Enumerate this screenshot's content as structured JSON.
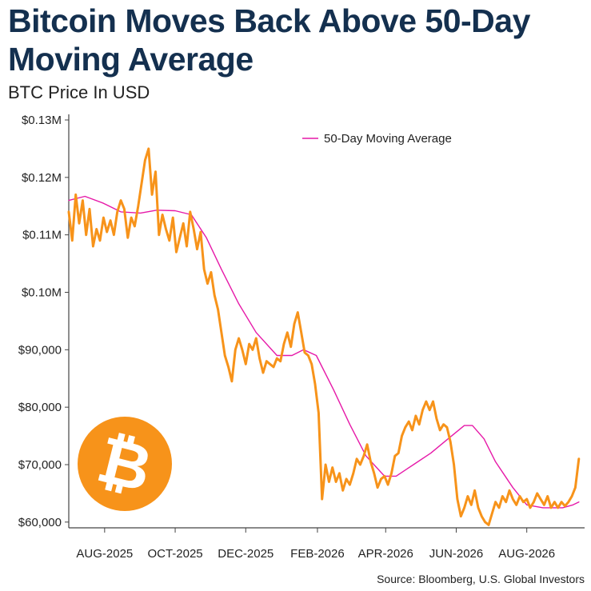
{
  "header": {
    "title_line1": "Bitcoin Moves Back Above 50-Day",
    "title_line2": "Moving Average",
    "subtitle": "BTC Price In USD"
  },
  "source": "Source: Bloomberg, U.S. Global Investors",
  "logo": {
    "icon": "bitcoin-logo-icon",
    "color": "#f7931a",
    "glyph": "₿"
  },
  "colors": {
    "price": "#f7931a",
    "moving_average": "#e619a8",
    "axis": "#444444"
  },
  "chart_data": {
    "type": "line",
    "title": "Bitcoin Moves Back Above 50-Day Moving Average",
    "subtitle": "BTC Price In USD",
    "ylim": [
      59000,
      130000
    ],
    "y_ticks": [
      {
        "value": 60000,
        "label": "$60,000"
      },
      {
        "value": 70000,
        "label": "$70,000"
      },
      {
        "value": 80000,
        "label": "$80,000"
      },
      {
        "value": 90000,
        "label": "$90,000"
      },
      {
        "value": 100000,
        "label": "$0.10M"
      },
      {
        "value": 110000,
        "label": "$0.11M"
      },
      {
        "value": 120000,
        "label": "$0.12M"
      },
      {
        "value": 130000,
        "label": "$0.13M"
      }
    ],
    "xlim": [
      "2025-07-01",
      "2026-09-20"
    ],
    "x_ticks": [
      {
        "date": "2025-08-01",
        "label": "AUG-2025"
      },
      {
        "date": "2025-10-01",
        "label": "OCT-2025"
      },
      {
        "date": "2025-12-01",
        "label": "DEC-2025"
      },
      {
        "date": "2026-02-01",
        "label": "FEB-2026"
      },
      {
        "date": "2026-04-01",
        "label": "APR-2026"
      },
      {
        "date": "2026-06-01",
        "label": "JUN-2026"
      },
      {
        "date": "2026-08-01",
        "label": "AUG-2026"
      }
    ],
    "legend": {
      "position": "top-center"
    },
    "series": [
      {
        "name": "BTC Price",
        "color": "#f7931a",
        "points": [
          [
            "2025-07-01",
            114000
          ],
          [
            "2025-07-04",
            109000
          ],
          [
            "2025-07-07",
            117000
          ],
          [
            "2025-07-10",
            112000
          ],
          [
            "2025-07-13",
            116000
          ],
          [
            "2025-07-16",
            110000
          ],
          [
            "2025-07-19",
            114500
          ],
          [
            "2025-07-22",
            108000
          ],
          [
            "2025-07-25",
            111000
          ],
          [
            "2025-07-28",
            109000
          ],
          [
            "2025-07-31",
            113000
          ],
          [
            "2025-08-03",
            110500
          ],
          [
            "2025-08-06",
            112500
          ],
          [
            "2025-08-09",
            110000
          ],
          [
            "2025-08-12",
            114000
          ],
          [
            "2025-08-15",
            116000
          ],
          [
            "2025-08-18",
            114500
          ],
          [
            "2025-08-21",
            109500
          ],
          [
            "2025-08-24",
            113000
          ],
          [
            "2025-08-27",
            111500
          ],
          [
            "2025-08-30",
            115000
          ],
          [
            "2025-09-02",
            119000
          ],
          [
            "2025-09-05",
            123000
          ],
          [
            "2025-09-08",
            125000
          ],
          [
            "2025-09-11",
            117000
          ],
          [
            "2025-09-14",
            121000
          ],
          [
            "2025-09-17",
            110000
          ],
          [
            "2025-09-20",
            113500
          ],
          [
            "2025-09-23",
            111000
          ],
          [
            "2025-09-26",
            109000
          ],
          [
            "2025-09-29",
            113000
          ],
          [
            "2025-10-02",
            107000
          ],
          [
            "2025-10-05",
            109500
          ],
          [
            "2025-10-08",
            112000
          ],
          [
            "2025-10-11",
            108000
          ],
          [
            "2025-10-14",
            114000
          ],
          [
            "2025-10-17",
            111000
          ],
          [
            "2025-10-20",
            107500
          ],
          [
            "2025-10-23",
            110500
          ],
          [
            "2025-10-26",
            104000
          ],
          [
            "2025-10-29",
            101500
          ],
          [
            "2025-11-01",
            103500
          ],
          [
            "2025-11-04",
            99500
          ],
          [
            "2025-11-07",
            97000
          ],
          [
            "2025-11-10",
            93000
          ],
          [
            "2025-11-13",
            89000
          ],
          [
            "2025-11-16",
            87000
          ],
          [
            "2025-11-19",
            84500
          ],
          [
            "2025-11-22",
            90000
          ],
          [
            "2025-11-25",
            92000
          ],
          [
            "2025-11-28",
            90000
          ],
          [
            "2025-12-01",
            87500
          ],
          [
            "2025-12-04",
            91000
          ],
          [
            "2025-12-07",
            90000
          ],
          [
            "2025-12-10",
            92000
          ],
          [
            "2025-12-13",
            88500
          ],
          [
            "2025-12-16",
            86000
          ],
          [
            "2025-12-19",
            88000
          ],
          [
            "2025-12-22",
            87500
          ],
          [
            "2025-12-25",
            87000
          ],
          [
            "2025-12-28",
            88500
          ],
          [
            "2025-12-31",
            88000
          ],
          [
            "2026-01-03",
            91000
          ],
          [
            "2026-01-06",
            93000
          ],
          [
            "2026-01-09",
            90500
          ],
          [
            "2026-01-12",
            94500
          ],
          [
            "2026-01-15",
            96500
          ],
          [
            "2026-01-18",
            93000
          ],
          [
            "2026-01-21",
            89500
          ],
          [
            "2026-01-24",
            89000
          ],
          [
            "2026-01-27",
            87500
          ],
          [
            "2026-01-30",
            84000
          ],
          [
            "2026-02-02",
            79000
          ],
          [
            "2026-02-05",
            64000
          ],
          [
            "2026-02-08",
            70000
          ],
          [
            "2026-02-11",
            67000
          ],
          [
            "2026-02-14",
            69500
          ],
          [
            "2026-02-17",
            67000
          ],
          [
            "2026-02-20",
            68500
          ],
          [
            "2026-02-23",
            65500
          ],
          [
            "2026-02-26",
            67500
          ],
          [
            "2026-03-01",
            66500
          ],
          [
            "2026-03-04",
            68500
          ],
          [
            "2026-03-07",
            71000
          ],
          [
            "2026-03-10",
            70000
          ],
          [
            "2026-03-13",
            71500
          ],
          [
            "2026-03-16",
            73500
          ],
          [
            "2026-03-19",
            70500
          ],
          [
            "2026-03-22",
            68500
          ],
          [
            "2026-03-25",
            66000
          ],
          [
            "2026-03-28",
            67500
          ],
          [
            "2026-03-31",
            68000
          ],
          [
            "2026-04-03",
            66500
          ],
          [
            "2026-04-06",
            68500
          ],
          [
            "2026-04-09",
            71500
          ],
          [
            "2026-04-12",
            72000
          ],
          [
            "2026-04-15",
            75000
          ],
          [
            "2026-04-18",
            76500
          ],
          [
            "2026-04-21",
            77500
          ],
          [
            "2026-04-24",
            76000
          ],
          [
            "2026-04-27",
            78500
          ],
          [
            "2026-04-30",
            77000
          ],
          [
            "2026-05-03",
            79500
          ],
          [
            "2026-05-06",
            81000
          ],
          [
            "2026-05-09",
            79500
          ],
          [
            "2026-05-12",
            81000
          ],
          [
            "2026-05-15",
            78000
          ],
          [
            "2026-05-18",
            76000
          ],
          [
            "2026-05-21",
            77000
          ],
          [
            "2026-05-24",
            76500
          ],
          [
            "2026-05-27",
            74000
          ],
          [
            "2026-05-30",
            70000
          ],
          [
            "2026-06-02",
            64000
          ],
          [
            "2026-06-05",
            61000
          ],
          [
            "2026-06-08",
            62500
          ],
          [
            "2026-06-11",
            64500
          ],
          [
            "2026-06-14",
            63000
          ],
          [
            "2026-06-17",
            65500
          ],
          [
            "2026-06-20",
            62500
          ],
          [
            "2026-06-23",
            61000
          ],
          [
            "2026-06-26",
            60000
          ],
          [
            "2026-06-29",
            59500
          ],
          [
            "2026-07-02",
            61500
          ],
          [
            "2026-07-05",
            63500
          ],
          [
            "2026-07-08",
            62500
          ],
          [
            "2026-07-11",
            64500
          ],
          [
            "2026-07-14",
            63500
          ],
          [
            "2026-07-17",
            65500
          ],
          [
            "2026-07-20",
            64000
          ],
          [
            "2026-07-23",
            63000
          ],
          [
            "2026-07-26",
            64500
          ],
          [
            "2026-07-29",
            63500
          ],
          [
            "2026-08-01",
            64000
          ],
          [
            "2026-08-04",
            62500
          ],
          [
            "2026-08-07",
            63500
          ],
          [
            "2026-08-10",
            65000
          ],
          [
            "2026-08-13",
            64000
          ],
          [
            "2026-08-16",
            63000
          ],
          [
            "2026-08-19",
            64500
          ],
          [
            "2026-08-22",
            62500
          ],
          [
            "2026-08-25",
            63500
          ],
          [
            "2026-08-28",
            62500
          ],
          [
            "2026-08-31",
            63500
          ],
          [
            "2026-09-03",
            62800
          ],
          [
            "2026-09-06",
            63500
          ],
          [
            "2026-09-09",
            64500
          ],
          [
            "2026-09-12",
            66000
          ],
          [
            "2026-09-15",
            71000
          ]
        ]
      },
      {
        "name": "50-Day Moving Average",
        "color": "#e619a8",
        "points": [
          [
            "2025-07-01",
            116000
          ],
          [
            "2025-07-15",
            116700
          ],
          [
            "2025-07-31",
            115500
          ],
          [
            "2025-08-15",
            114000
          ],
          [
            "2025-09-01",
            113800
          ],
          [
            "2025-09-15",
            114300
          ],
          [
            "2025-10-01",
            114200
          ],
          [
            "2025-10-15",
            113500
          ],
          [
            "2025-10-28",
            109500
          ],
          [
            "2025-11-10",
            104000
          ],
          [
            "2025-11-25",
            98000
          ],
          [
            "2025-12-10",
            93000
          ],
          [
            "2025-12-28",
            89000
          ],
          [
            "2026-01-10",
            89000
          ],
          [
            "2026-01-20",
            90000
          ],
          [
            "2026-01-31",
            89000
          ],
          [
            "2026-02-15",
            83000
          ],
          [
            "2026-03-01",
            77000
          ],
          [
            "2026-03-15",
            71500
          ],
          [
            "2026-03-31",
            68000
          ],
          [
            "2026-04-10",
            68000
          ],
          [
            "2026-04-25",
            70000
          ],
          [
            "2026-05-10",
            72000
          ],
          [
            "2026-05-25",
            74500
          ],
          [
            "2026-06-08",
            76800
          ],
          [
            "2026-06-15",
            76800
          ],
          [
            "2026-06-25",
            74500
          ],
          [
            "2026-07-05",
            70500
          ],
          [
            "2026-07-20",
            66000
          ],
          [
            "2026-08-01",
            63000
          ],
          [
            "2026-08-15",
            62500
          ],
          [
            "2026-09-01",
            62500
          ],
          [
            "2026-09-10",
            63000
          ],
          [
            "2026-09-15",
            63500
          ]
        ]
      }
    ]
  }
}
